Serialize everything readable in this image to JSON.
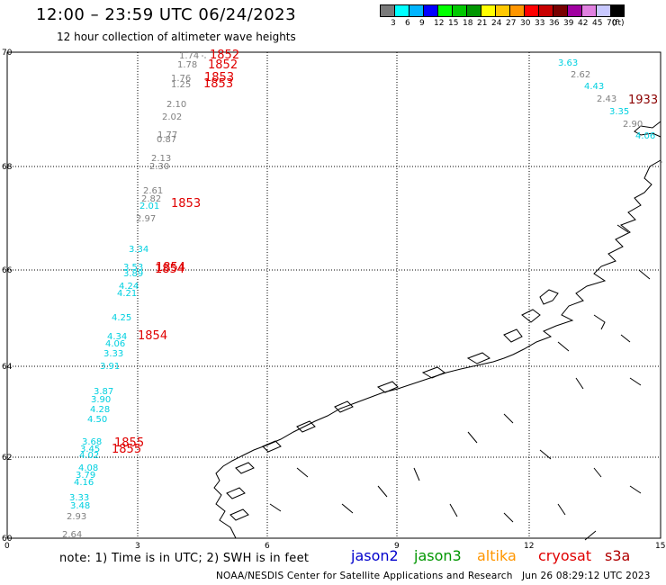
{
  "header": {
    "title": "12:00 – 23:59 UTC 06/24/2023",
    "subtitle": "12 hour collection of altimeter wave heights"
  },
  "legend": {
    "colors": [
      "#7a7a7a",
      "#00ffff",
      "#00b4ff",
      "#0000ff",
      "#00ff00",
      "#00c800",
      "#009600",
      "#ffff00",
      "#ffc800",
      "#ff9600",
      "#ff0000",
      "#c80000",
      "#780000",
      "#a000a0",
      "#e080e0",
      "#c8c8ff",
      "#000000"
    ],
    "labels": [
      "3",
      "6",
      "9",
      "12",
      "15",
      "18",
      "21",
      "24",
      "27",
      "30",
      "33",
      "36",
      "39",
      "42",
      "45",
      "70",
      "(ft)"
    ]
  },
  "axes": {
    "y_ticks": [
      "70",
      "68",
      "66",
      "64",
      "62",
      "60"
    ],
    "x_ticks": [
      "0",
      "3",
      "6",
      "9",
      "12",
      "15"
    ]
  },
  "readings_gray": [
    "1.74",
    "1.78",
    "1.76",
    "1.25",
    "2.10",
    "2.02",
    "1.77",
    "0.87",
    "2.13",
    "2.30",
    "2.61",
    "2.82",
    "2.97",
    "2.93",
    "2.64",
    "2.62",
    "2.43",
    "2.90"
  ],
  "readings_cyan": [
    "2.01",
    "3.34",
    "3.53",
    "3.89",
    "4.24",
    "4.21",
    "4.25",
    "4.34",
    "4.06",
    "3.33",
    "3.91",
    "3.87",
    "3.90",
    "4.28",
    "4.50",
    "3.68",
    "3.45",
    "4.02",
    "4.08",
    "3.79",
    "4.16",
    "3.33",
    "3.48",
    "3.63",
    "4.43",
    "3.35",
    "4.06"
  ],
  "times_red": [
    "1852",
    "1852",
    "1853",
    "1853",
    "1853",
    "1854",
    "1854",
    "1854",
    "1855",
    "1855"
  ],
  "times_darkred": [
    "1933"
  ],
  "footer": {
    "note": "note:  1) Time is in UTC;  2) SWH is in feet",
    "sat1": "jason2",
    "sat1_color": "#0000cc",
    "sat2": "jason3",
    "sat2_color": "#009600",
    "sat3": "altika",
    "sat3_color": "#ff9600",
    "sat4": "cryosat",
    "sat4_color": "#e00000",
    "sat5": "s3a",
    "sat5_color": "#b00000",
    "credit": "NOAA/NESDIS Center for Satellite Applications and Research",
    "timestamp": "Jun 26 08:29:12 UTC 2023"
  }
}
